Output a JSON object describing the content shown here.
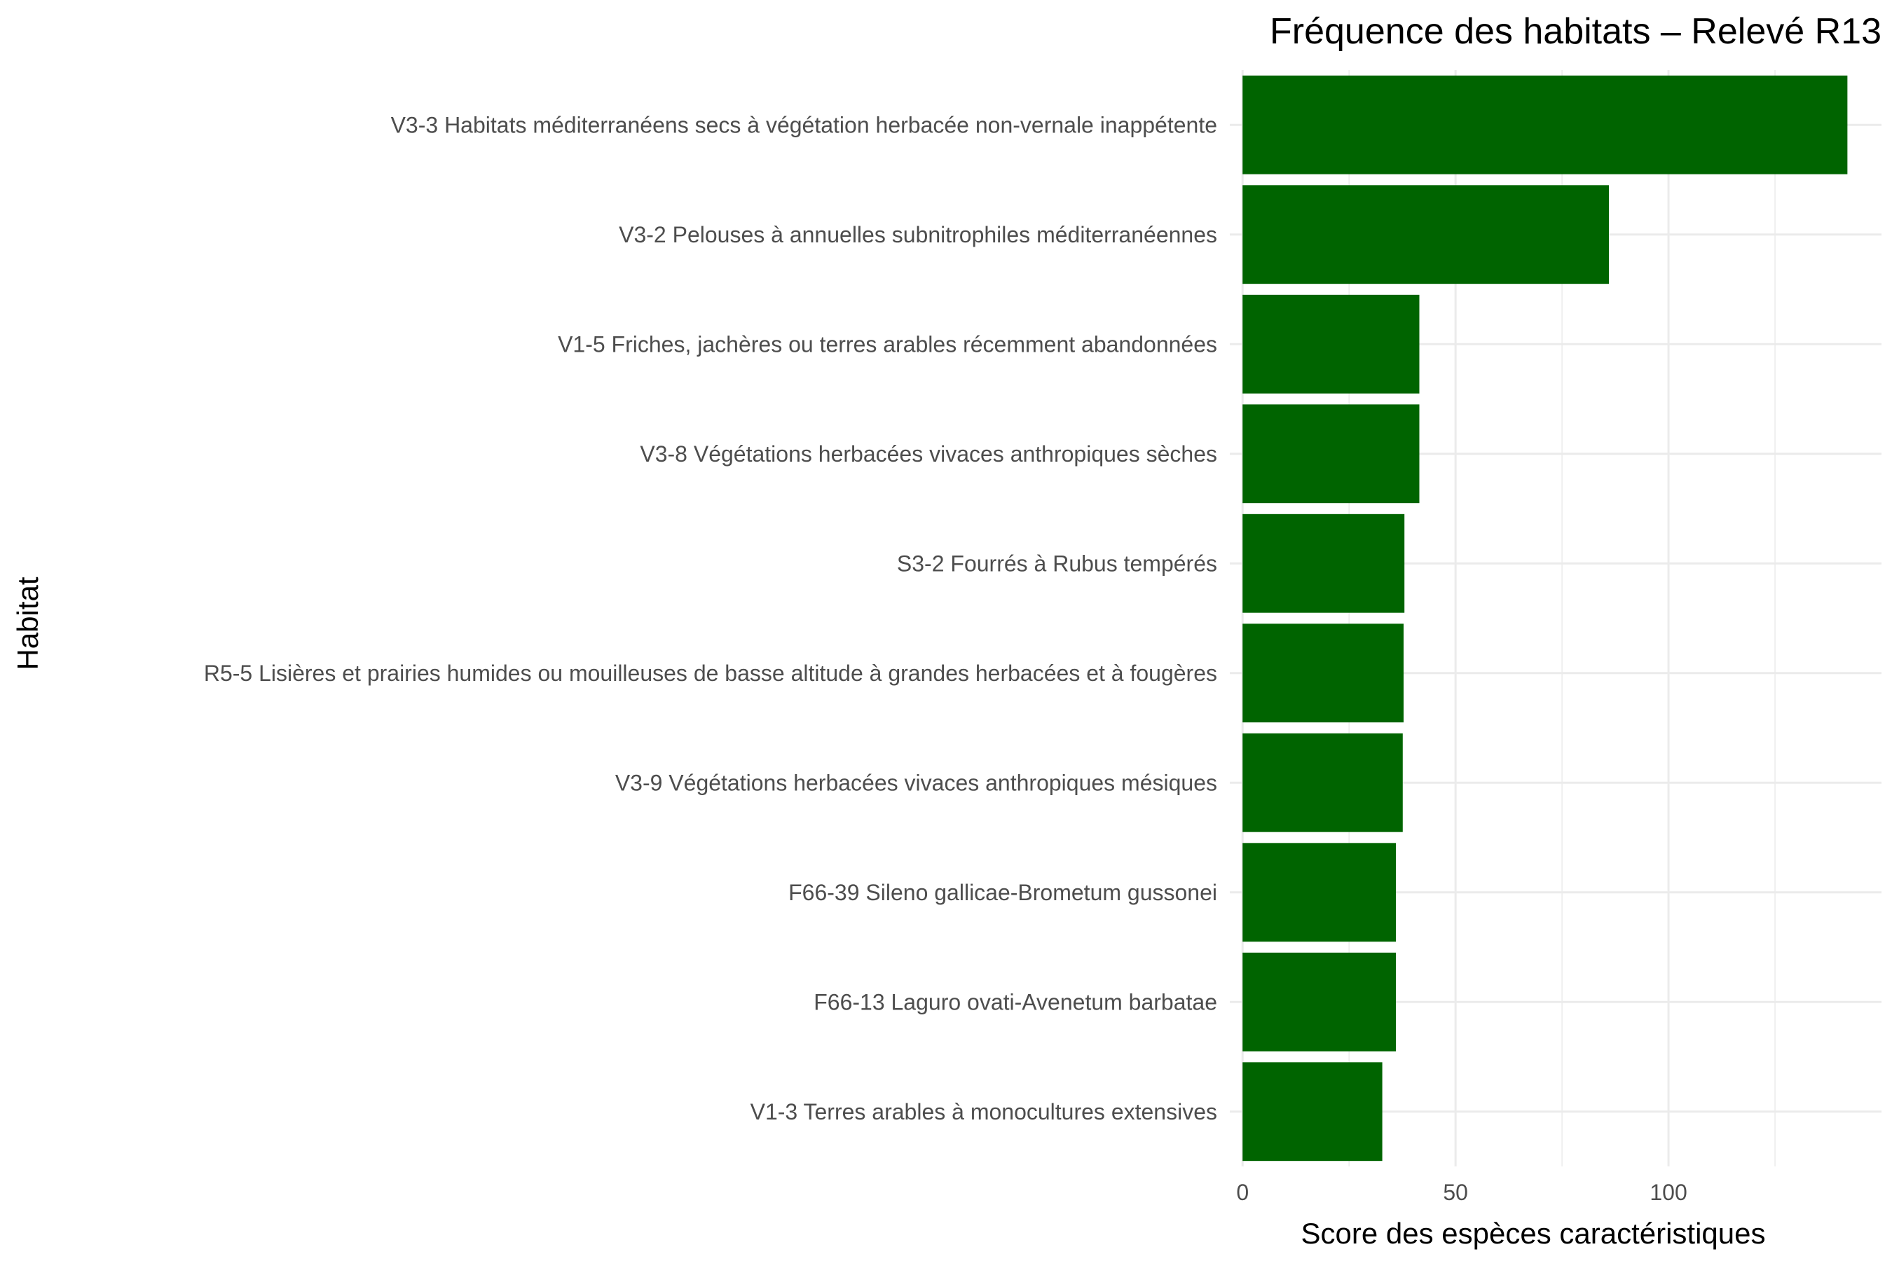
{
  "chart_data": {
    "type": "bar",
    "orientation": "horizontal",
    "title": "Fréquence des habitats – Relevé R13",
    "xlabel": "Score des espèces caractéristiques",
    "ylabel": "Habitat",
    "categories": [
      "V3-3 Habitats méditerranéens secs à végétation herbacée non-vernale inappétente",
      "V3-2 Pelouses à annuelles subnitrophiles méditerranéennes",
      "V1-5 Friches, jachères ou terres arables récemment abandonnées",
      "V3-8 Végétations herbacées vivaces anthropiques sèches",
      "S3-2 Fourrés à Rubus tempérés",
      "R5-5 Lisières et prairies humides ou mouilleuses de basse altitude à grandes herbacées et à fougères",
      "V3-9 Végétations herbacées vivaces anthropiques mésiques",
      "F66-39 Sileno gallicae-Brometum gussonei",
      "F66-13 Laguro ovati-Avenetum barbatae",
      "V1-3 Terres arables à monocultures extensives"
    ],
    "values": [
      142,
      86,
      41.5,
      41.5,
      38,
      37.8,
      37.6,
      36,
      36,
      32.8
    ],
    "xlim": [
      -3,
      150
    ],
    "xticks": [
      0,
      50,
      100
    ],
    "bar_color": "#006400",
    "grid": true,
    "legend": "none"
  }
}
